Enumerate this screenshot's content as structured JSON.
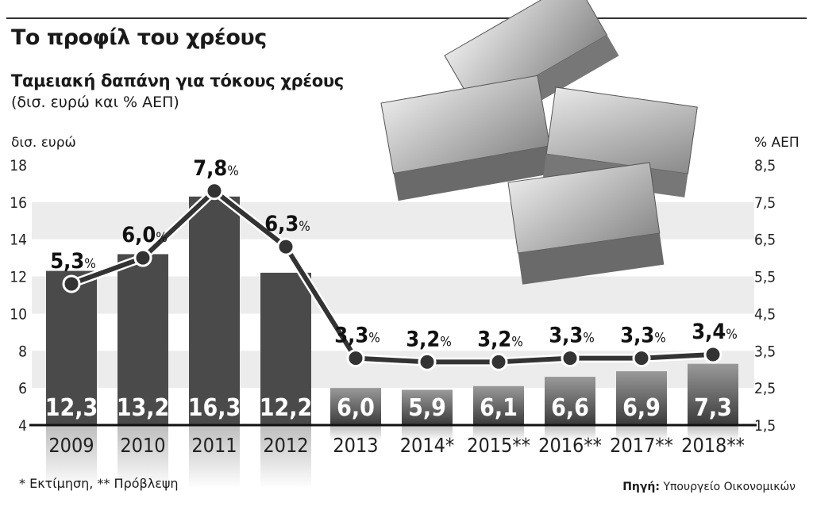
{
  "title": "Το προφίλ του χρέους",
  "subtitle": "Ταμειακή δαπάνη για τόκους χρέους",
  "units": "(δισ. ευρώ και % ΑΕΠ)",
  "footnote": "* Εκτίμηση, ** Πρόβλεψη",
  "source_label": "Πηγή:",
  "source": "Υπουργείο Οικονομικών",
  "chart_data": {
    "type": "bar+line",
    "categories": [
      "2009",
      "2010",
      "2011",
      "2012",
      "2013",
      "2014*",
      "2015**",
      "2016**",
      "2017**",
      "2018**"
    ],
    "left_axis": {
      "label": "δισ. ευρώ",
      "ylim": [
        4,
        18
      ],
      "ticks": [
        "4",
        "6",
        "8",
        "10",
        "12",
        "14",
        "16",
        "18"
      ]
    },
    "right_axis": {
      "label": "% ΑΕΠ",
      "ylim": [
        1.5,
        8.5
      ],
      "ticks": [
        "1,5",
        "2,5",
        "3,5",
        "4,5",
        "5,5",
        "6,5",
        "7,5",
        "8,5"
      ]
    },
    "bars": {
      "values": [
        12.3,
        13.2,
        16.3,
        12.2,
        6.0,
        5.9,
        6.1,
        6.6,
        6.9,
        7.3
      ],
      "labels": [
        "12,3",
        "13,2",
        "16,3",
        "12,2",
        "6,0",
        "5,9",
        "6,1",
        "6,6",
        "6,9",
        "7,3"
      ]
    },
    "line": {
      "values": [
        5.3,
        6.0,
        7.8,
        6.3,
        3.3,
        3.2,
        3.2,
        3.3,
        3.3,
        3.4
      ],
      "labels": [
        "5,3",
        "6,0",
        "7,8",
        "6,3",
        "3,3",
        "3,2",
        "3,2",
        "3,3",
        "3,3",
        "3,4"
      ],
      "suffix": "%"
    },
    "grid": "alternating bands",
    "colors": {
      "bars_dark": "#4a4a4a",
      "bars_light": "#9a9a9a",
      "line": "#333333",
      "band": "#ececec"
    }
  }
}
